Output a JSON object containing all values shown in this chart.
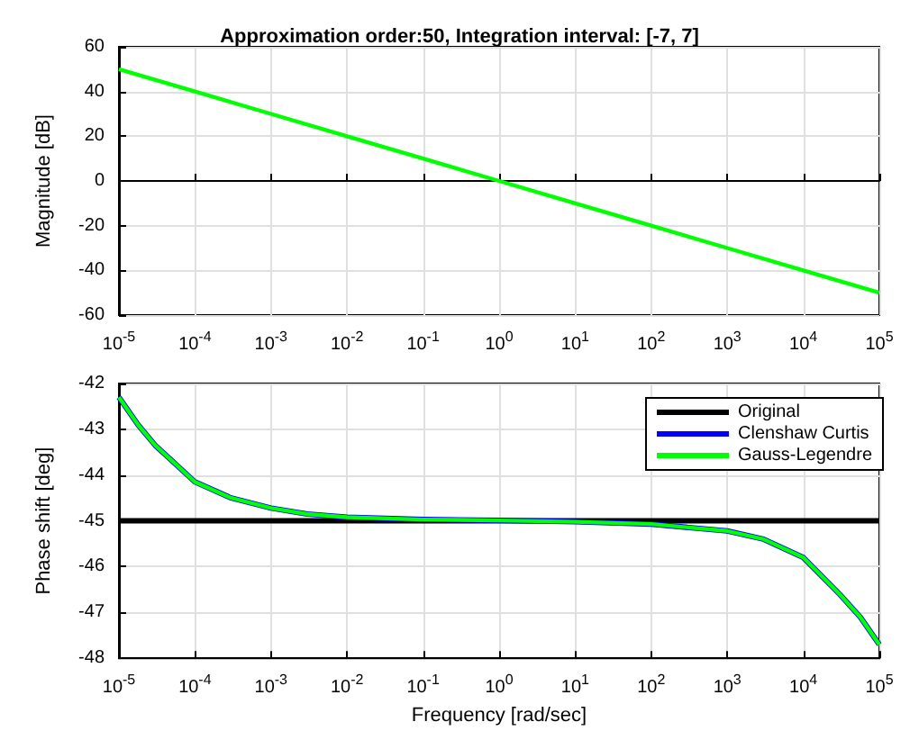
{
  "chart_data": [
    {
      "type": "line",
      "title": "Approximation order:50, Integration interval: [-7, 7]",
      "ylabel": "Magnitude [dB]",
      "log": "x",
      "xlim": [
        1e-05,
        100000
      ],
      "xticks": [
        {
          "value": 1e-05,
          "label": "10$^{-5}$"
        },
        {
          "value": 0.0001,
          "label": "10$^{-4}$"
        },
        {
          "value": 0.001,
          "label": "10$^{-3}$"
        },
        {
          "value": 0.01,
          "label": "10$^{-2}$"
        },
        {
          "value": 0.1,
          "label": "10$^{-1}$"
        },
        {
          "value": 1,
          "label": "10$^{0}$"
        },
        {
          "value": 10,
          "label": "10$^{1}$"
        },
        {
          "value": 100,
          "label": "10$^{2}$"
        },
        {
          "value": 1000,
          "label": "10$^{3}$"
        },
        {
          "value": 10000,
          "label": "10$^{4}$"
        },
        {
          "value": 100000,
          "label": "10$^{5}$"
        }
      ],
      "ylim": [
        -60,
        60
      ],
      "yticks": [
        -60,
        -40,
        -20,
        0,
        20,
        40,
        60
      ],
      "grid": true,
      "legend": false,
      "series": [
        {
          "color": "#00ff00",
          "x": [
            1e-05,
            0.0001,
            0.001,
            0.01,
            0.1,
            1,
            10,
            100,
            1000,
            10000,
            100000
          ],
          "values": [
            50,
            40,
            30,
            20,
            10,
            0,
            -10,
            -20,
            -30,
            -40,
            -50
          ]
        }
      ]
    },
    {
      "type": "line",
      "xlabel": "Frequency [rad/sec]",
      "ylabel": "Phase shift [deg]",
      "log": "x",
      "xlim": [
        1e-05,
        100000
      ],
      "xticks": [
        {
          "value": 1e-05,
          "label": "10$^{-5}$"
        },
        {
          "value": 0.0001,
          "label": "10$^{-4}$"
        },
        {
          "value": 0.001,
          "label": "10$^{-3}$"
        },
        {
          "value": 0.01,
          "label": "10$^{-2}$"
        },
        {
          "value": 0.1,
          "label": "10$^{-1}$"
        },
        {
          "value": 1,
          "label": "10$^{0}$"
        },
        {
          "value": 10,
          "label": "10$^{1}$"
        },
        {
          "value": 100,
          "label": "10$^{2}$"
        },
        {
          "value": 1000,
          "label": "10$^{3}$"
        },
        {
          "value": 10000,
          "label": "10$^{4}$"
        },
        {
          "value": 100000,
          "label": "10$^{5}$"
        }
      ],
      "ylim": [
        -48,
        -42
      ],
      "yticks": [
        -48,
        -47,
        -46,
        -45,
        -44,
        -43,
        -42
      ],
      "grid": true,
      "legend": "top right",
      "series": [
        {
          "name": "Original",
          "color": "#000000",
          "x": [
            1e-05,
            100000
          ],
          "values": [
            -45,
            -45
          ]
        },
        {
          "name": "Clenshaw Curtis",
          "color": "#0000ff",
          "x": [
            1e-05,
            1.78e-05,
            3e-05,
            0.0001,
            0.0003,
            0.001,
            0.003,
            0.01,
            0.1,
            1,
            10,
            100,
            1000,
            3000,
            10000,
            30000,
            56200,
            100000
          ],
          "values": [
            -42.3,
            -42.9,
            -43.35,
            -44.15,
            -44.5,
            -44.72,
            -44.85,
            -44.92,
            -44.97,
            -44.99,
            -45.02,
            -45.07,
            -45.22,
            -45.4,
            -45.8,
            -46.6,
            -47.1,
            -47.7
          ]
        },
        {
          "name": "Gauss-Legendre",
          "color": "#00ff00",
          "x": [
            1e-05,
            1.78e-05,
            3e-05,
            0.0001,
            0.0003,
            0.001,
            0.003,
            0.01,
            0.1,
            1,
            10,
            100,
            1000,
            3000,
            10000,
            30000,
            56200,
            100000
          ],
          "values": [
            -42.3,
            -42.9,
            -43.35,
            -44.15,
            -44.5,
            -44.72,
            -44.85,
            -44.92,
            -44.97,
            -44.99,
            -45.02,
            -45.07,
            -45.22,
            -45.4,
            -45.8,
            -46.6,
            -47.1,
            -47.7
          ]
        }
      ]
    }
  ]
}
